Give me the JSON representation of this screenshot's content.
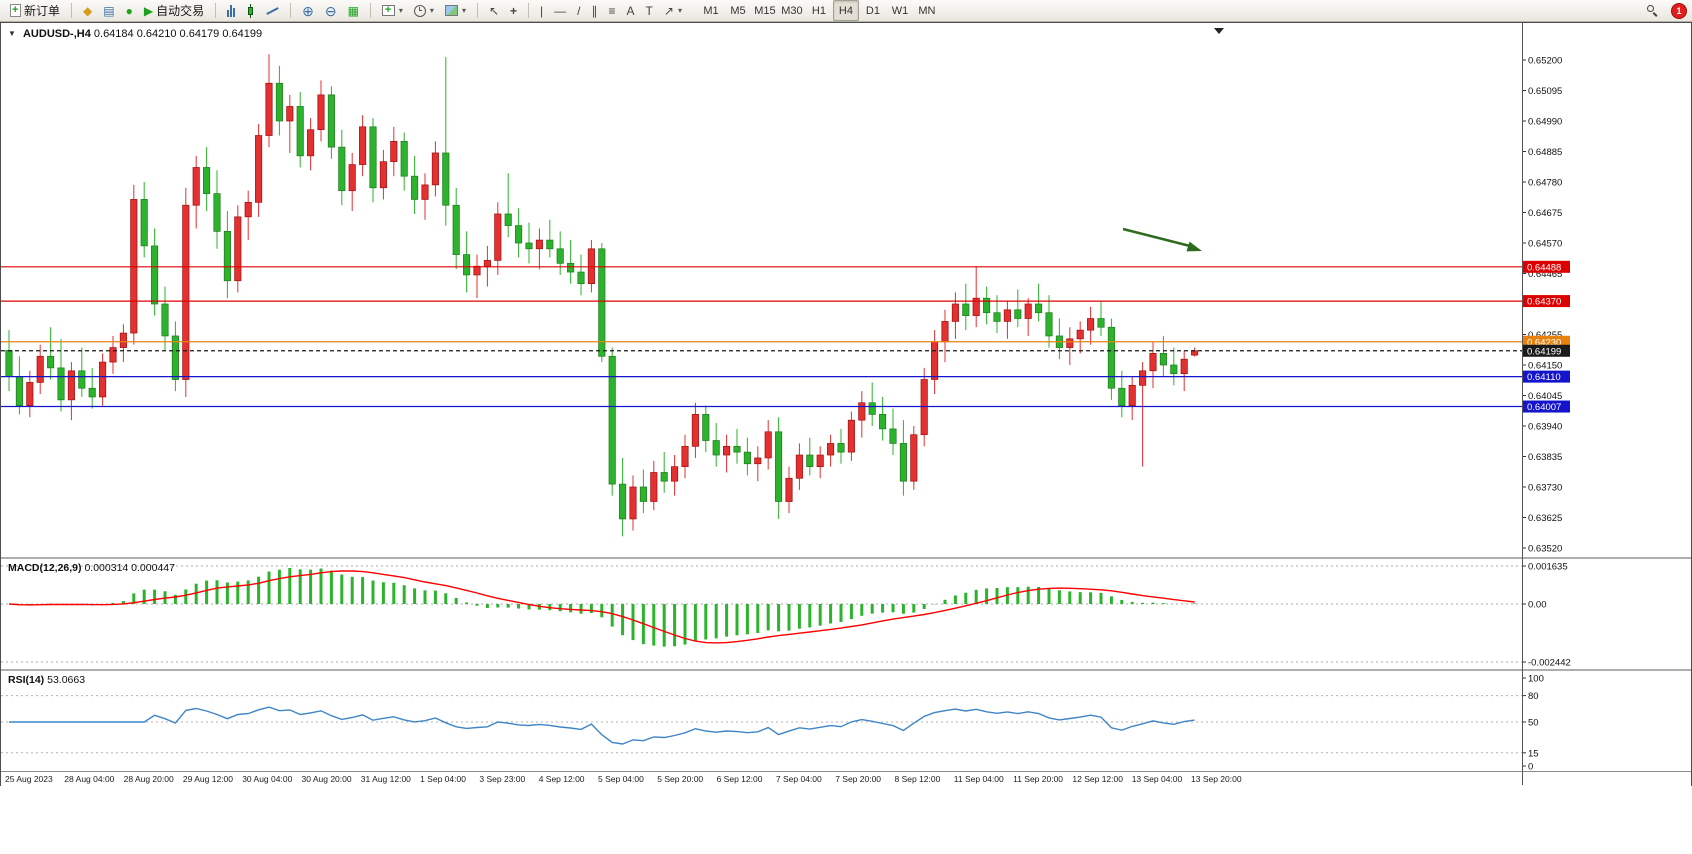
{
  "toolbar": {
    "new_order": {
      "label": "新订单"
    },
    "auto_trading": {
      "label": "自动交易"
    },
    "timeframes": {
      "items": [
        "M1",
        "M5",
        "M15",
        "M30",
        "H1",
        "H4",
        "D1",
        "W1",
        "MN"
      ],
      "active": "H4"
    },
    "notification_count": "1",
    "glyphs": {
      "collapse": "▼",
      "dropdown": "▾",
      "play": "▶",
      "plus": "+",
      "market_watch": "◆",
      "data_window": "▤",
      "terminal": "●",
      "tile": "▦",
      "zoom_in": "⊕",
      "zoom_out": "⊖",
      "cursor": "↖",
      "crosshair": "+",
      "vline": "|",
      "hline": "—",
      "tline": "/",
      "channel": "∥",
      "fibo": "≡",
      "text": "A",
      "frame": "T",
      "shapes": "↗"
    }
  },
  "chart": {
    "symbol_label": "AUDUSD-,H4",
    "ohlc_text": "0.64184 0.64210 0.64179 0.64199",
    "macd_label": "MACD(12,26,9)",
    "macd_values": "0.000314 0.000447",
    "rsi_label": "RSI(14)",
    "rsi_value": "53.0663"
  },
  "chart_data": {
    "type": "candlestick",
    "symbol": "AUDUSD-",
    "timeframe": "H4",
    "up_color": "#e33030",
    "down_color": "#2db22d",
    "current": {
      "open": "0.64184",
      "high": "0.64210",
      "low": "0.64179",
      "close": "0.64199"
    },
    "price_axis": [
      "0.65200",
      "0.65095",
      "0.64990",
      "0.64885",
      "0.64780",
      "0.64675",
      "0.64570",
      "0.64465",
      "0.64255",
      "0.64150",
      "0.64045",
      "0.63940",
      "0.63835",
      "0.63730",
      "0.63625",
      "0.63520"
    ],
    "time_axis": [
      "25 Aug 2023",
      "28 Aug 04:00",
      "28 Aug 20:00",
      "29 Aug 12:00",
      "30 Aug 04:00",
      "30 Aug 20:00",
      "31 Aug 12:00",
      "1 Sep 04:00",
      "3 Sep 23:00",
      "4 Sep 12:00",
      "5 Sep 04:00",
      "5 Sep 20:00",
      "6 Sep 12:00",
      "7 Sep 04:00",
      "7 Sep 20:00",
      "8 Sep 12:00",
      "11 Sep 04:00",
      "11 Sep 20:00",
      "12 Sep 12:00",
      "13 Sep 04:00",
      "13 Sep 20:00"
    ],
    "levels": [
      {
        "price": 0.64488,
        "label": "0.64488",
        "color": "#dd0000",
        "style": "solid"
      },
      {
        "price": 0.6437,
        "label": "0.64370",
        "color": "#dd0000",
        "style": "solid"
      },
      {
        "price": 0.6423,
        "label": "0.64230",
        "color": "#e8820e",
        "style": "solid"
      },
      {
        "price": 0.64199,
        "label": "0.64199",
        "color": "#1a1a1a",
        "style": "dash"
      },
      {
        "price": 0.6411,
        "label": "0.64110",
        "color": "#1414cc",
        "style": "solid"
      },
      {
        "price": 0.64007,
        "label": "0.64007",
        "color": "#1414cc",
        "style": "solid"
      }
    ],
    "arrow_annotation": {
      "color": "#2e6b1e"
    },
    "macd": {
      "histogram_color": "#2db22d",
      "signal_color": "#ff0000",
      "fast": 12,
      "slow": 26,
      "signal": 9,
      "axis": [
        "0.001635",
        "0.00",
        "-0.002442"
      ]
    },
    "rsi": {
      "line_color": "#3f85c6",
      "period": 14,
      "levels": [
        80,
        50,
        15
      ],
      "axis": [
        "100",
        "80",
        "50",
        "15",
        "0"
      ]
    },
    "ohlc": [
      [
        0.642,
        0.6427,
        0.6406,
        0.6411
      ],
      [
        0.6411,
        0.6418,
        0.6398,
        0.6401
      ],
      [
        0.6401,
        0.6413,
        0.6397,
        0.6409
      ],
      [
        0.6409,
        0.6422,
        0.6405,
        0.6418
      ],
      [
        0.6418,
        0.6428,
        0.641,
        0.6414
      ],
      [
        0.6414,
        0.6424,
        0.6399,
        0.6403
      ],
      [
        0.6403,
        0.6416,
        0.6396,
        0.6413
      ],
      [
        0.6413,
        0.6421,
        0.6404,
        0.6407
      ],
      [
        0.6407,
        0.6414,
        0.64,
        0.6404
      ],
      [
        0.6404,
        0.6419,
        0.6401,
        0.6416
      ],
      [
        0.6416,
        0.6425,
        0.6412,
        0.6421
      ],
      [
        0.6421,
        0.6429,
        0.6416,
        0.6426
      ],
      [
        0.6426,
        0.6477,
        0.6422,
        0.6472
      ],
      [
        0.6472,
        0.6478,
        0.6452,
        0.6456
      ],
      [
        0.6456,
        0.6462,
        0.6432,
        0.6436
      ],
      [
        0.6436,
        0.6442,
        0.642,
        0.6425
      ],
      [
        0.6425,
        0.643,
        0.6406,
        0.641
      ],
      [
        0.641,
        0.6476,
        0.6404,
        0.647
      ],
      [
        0.647,
        0.6487,
        0.6462,
        0.6483
      ],
      [
        0.6483,
        0.649,
        0.6468,
        0.6474
      ],
      [
        0.6474,
        0.6482,
        0.6455,
        0.6461
      ],
      [
        0.6461,
        0.6468,
        0.6438,
        0.6444
      ],
      [
        0.6444,
        0.647,
        0.644,
        0.6466
      ],
      [
        0.6466,
        0.6475,
        0.6458,
        0.6471
      ],
      [
        0.6471,
        0.6498,
        0.6466,
        0.6494
      ],
      [
        0.6494,
        0.6522,
        0.649,
        0.6512
      ],
      [
        0.6512,
        0.6518,
        0.6494,
        0.6499
      ],
      [
        0.6499,
        0.6508,
        0.6488,
        0.6504
      ],
      [
        0.6504,
        0.6509,
        0.6483,
        0.6487
      ],
      [
        0.6487,
        0.65,
        0.6482,
        0.6496
      ],
      [
        0.6496,
        0.6513,
        0.6492,
        0.6508
      ],
      [
        0.6508,
        0.6511,
        0.6486,
        0.649
      ],
      [
        0.649,
        0.6496,
        0.647,
        0.6475
      ],
      [
        0.6475,
        0.6488,
        0.6468,
        0.6484
      ],
      [
        0.6484,
        0.6501,
        0.648,
        0.6497
      ],
      [
        0.6497,
        0.65,
        0.6471,
        0.6476
      ],
      [
        0.6476,
        0.6489,
        0.6472,
        0.6485
      ],
      [
        0.6485,
        0.6497,
        0.648,
        0.6492
      ],
      [
        0.6492,
        0.6495,
        0.6475,
        0.648
      ],
      [
        0.648,
        0.6487,
        0.6467,
        0.6472
      ],
      [
        0.6472,
        0.6481,
        0.6465,
        0.6477
      ],
      [
        0.6477,
        0.6492,
        0.6473,
        0.6488
      ],
      [
        0.6488,
        0.6521,
        0.6463,
        0.647
      ],
      [
        0.647,
        0.6476,
        0.6448,
        0.6453
      ],
      [
        0.6453,
        0.6461,
        0.644,
        0.6446
      ],
      [
        0.6446,
        0.6453,
        0.6438,
        0.6449
      ],
      [
        0.6449,
        0.6456,
        0.6442,
        0.6451
      ],
      [
        0.6451,
        0.6471,
        0.6446,
        0.6467
      ],
      [
        0.6467,
        0.6481,
        0.6459,
        0.6463
      ],
      [
        0.6463,
        0.6469,
        0.6452,
        0.6457
      ],
      [
        0.6457,
        0.6464,
        0.645,
        0.6455
      ],
      [
        0.6455,
        0.6462,
        0.6448,
        0.6458
      ],
      [
        0.6458,
        0.6465,
        0.6452,
        0.6455
      ],
      [
        0.6455,
        0.6461,
        0.6446,
        0.645
      ],
      [
        0.645,
        0.6458,
        0.6443,
        0.6447
      ],
      [
        0.6447,
        0.6453,
        0.6439,
        0.6443
      ],
      [
        0.6443,
        0.6458,
        0.644,
        0.6455
      ],
      [
        0.6455,
        0.6457,
        0.6416,
        0.6418
      ],
      [
        0.6418,
        0.6421,
        0.637,
        0.6374
      ],
      [
        0.6374,
        0.6383,
        0.6356,
        0.6362
      ],
      [
        0.6362,
        0.6377,
        0.6358,
        0.6373
      ],
      [
        0.6373,
        0.6379,
        0.6364,
        0.6368
      ],
      [
        0.6368,
        0.6382,
        0.6365,
        0.6378
      ],
      [
        0.6378,
        0.6385,
        0.6371,
        0.6375
      ],
      [
        0.6375,
        0.6384,
        0.637,
        0.638
      ],
      [
        0.638,
        0.6391,
        0.6376,
        0.6387
      ],
      [
        0.6387,
        0.6402,
        0.6383,
        0.6398
      ],
      [
        0.6398,
        0.6401,
        0.6385,
        0.6389
      ],
      [
        0.6389,
        0.6395,
        0.638,
        0.6384
      ],
      [
        0.6384,
        0.6391,
        0.6378,
        0.6387
      ],
      [
        0.6387,
        0.6393,
        0.6381,
        0.6385
      ],
      [
        0.6385,
        0.639,
        0.6377,
        0.6381
      ],
      [
        0.6381,
        0.6387,
        0.6375,
        0.6383
      ],
      [
        0.6383,
        0.6396,
        0.6379,
        0.6392
      ],
      [
        0.6392,
        0.6397,
        0.6362,
        0.6368
      ],
      [
        0.6368,
        0.638,
        0.6364,
        0.6376
      ],
      [
        0.6376,
        0.6388,
        0.6372,
        0.6384
      ],
      [
        0.6384,
        0.639,
        0.6377,
        0.638
      ],
      [
        0.638,
        0.6387,
        0.6376,
        0.6384
      ],
      [
        0.6384,
        0.6391,
        0.638,
        0.6388
      ],
      [
        0.6388,
        0.6393,
        0.6381,
        0.6385
      ],
      [
        0.6385,
        0.6399,
        0.6382,
        0.6396
      ],
      [
        0.6396,
        0.6406,
        0.639,
        0.6402
      ],
      [
        0.6402,
        0.6409,
        0.6394,
        0.6398
      ],
      [
        0.6398,
        0.6404,
        0.6389,
        0.6393
      ],
      [
        0.6393,
        0.64,
        0.6384,
        0.6388
      ],
      [
        0.6388,
        0.6396,
        0.637,
        0.6375
      ],
      [
        0.6375,
        0.6394,
        0.6372,
        0.6391
      ],
      [
        0.6391,
        0.6414,
        0.6387,
        0.641
      ],
      [
        0.641,
        0.6427,
        0.6405,
        0.6423
      ],
      [
        0.6423,
        0.6434,
        0.6416,
        0.643
      ],
      [
        0.643,
        0.644,
        0.6424,
        0.6436
      ],
      [
        0.6436,
        0.6443,
        0.6427,
        0.6432
      ],
      [
        0.6432,
        0.6449,
        0.6428,
        0.6438
      ],
      [
        0.6438,
        0.6442,
        0.6429,
        0.6433
      ],
      [
        0.6433,
        0.6439,
        0.6426,
        0.643
      ],
      [
        0.643,
        0.6437,
        0.6424,
        0.6434
      ],
      [
        0.6434,
        0.6441,
        0.6428,
        0.6431
      ],
      [
        0.6431,
        0.6438,
        0.6425,
        0.6436
      ],
      [
        0.6436,
        0.6443,
        0.643,
        0.6433
      ],
      [
        0.6433,
        0.6439,
        0.6421,
        0.6425
      ],
      [
        0.6425,
        0.6431,
        0.6417,
        0.6421
      ],
      [
        0.6421,
        0.6428,
        0.6415,
        0.6424
      ],
      [
        0.6424,
        0.643,
        0.6419,
        0.6427
      ],
      [
        0.6427,
        0.6435,
        0.6422,
        0.6431
      ],
      [
        0.6431,
        0.6437,
        0.6425,
        0.6428
      ],
      [
        0.6428,
        0.6431,
        0.6403,
        0.6407
      ],
      [
        0.6407,
        0.6413,
        0.6397,
        0.6401
      ],
      [
        0.6401,
        0.6411,
        0.6396,
        0.6408
      ],
      [
        0.6408,
        0.6416,
        0.638,
        0.6413
      ],
      [
        0.6413,
        0.6423,
        0.6407,
        0.6419
      ],
      [
        0.6419,
        0.6425,
        0.6411,
        0.6415
      ],
      [
        0.6415,
        0.6421,
        0.6408,
        0.6412
      ],
      [
        0.6412,
        0.642,
        0.6406,
        0.6417
      ],
      [
        0.64184,
        0.6421,
        0.64179,
        0.64199
      ]
    ]
  }
}
